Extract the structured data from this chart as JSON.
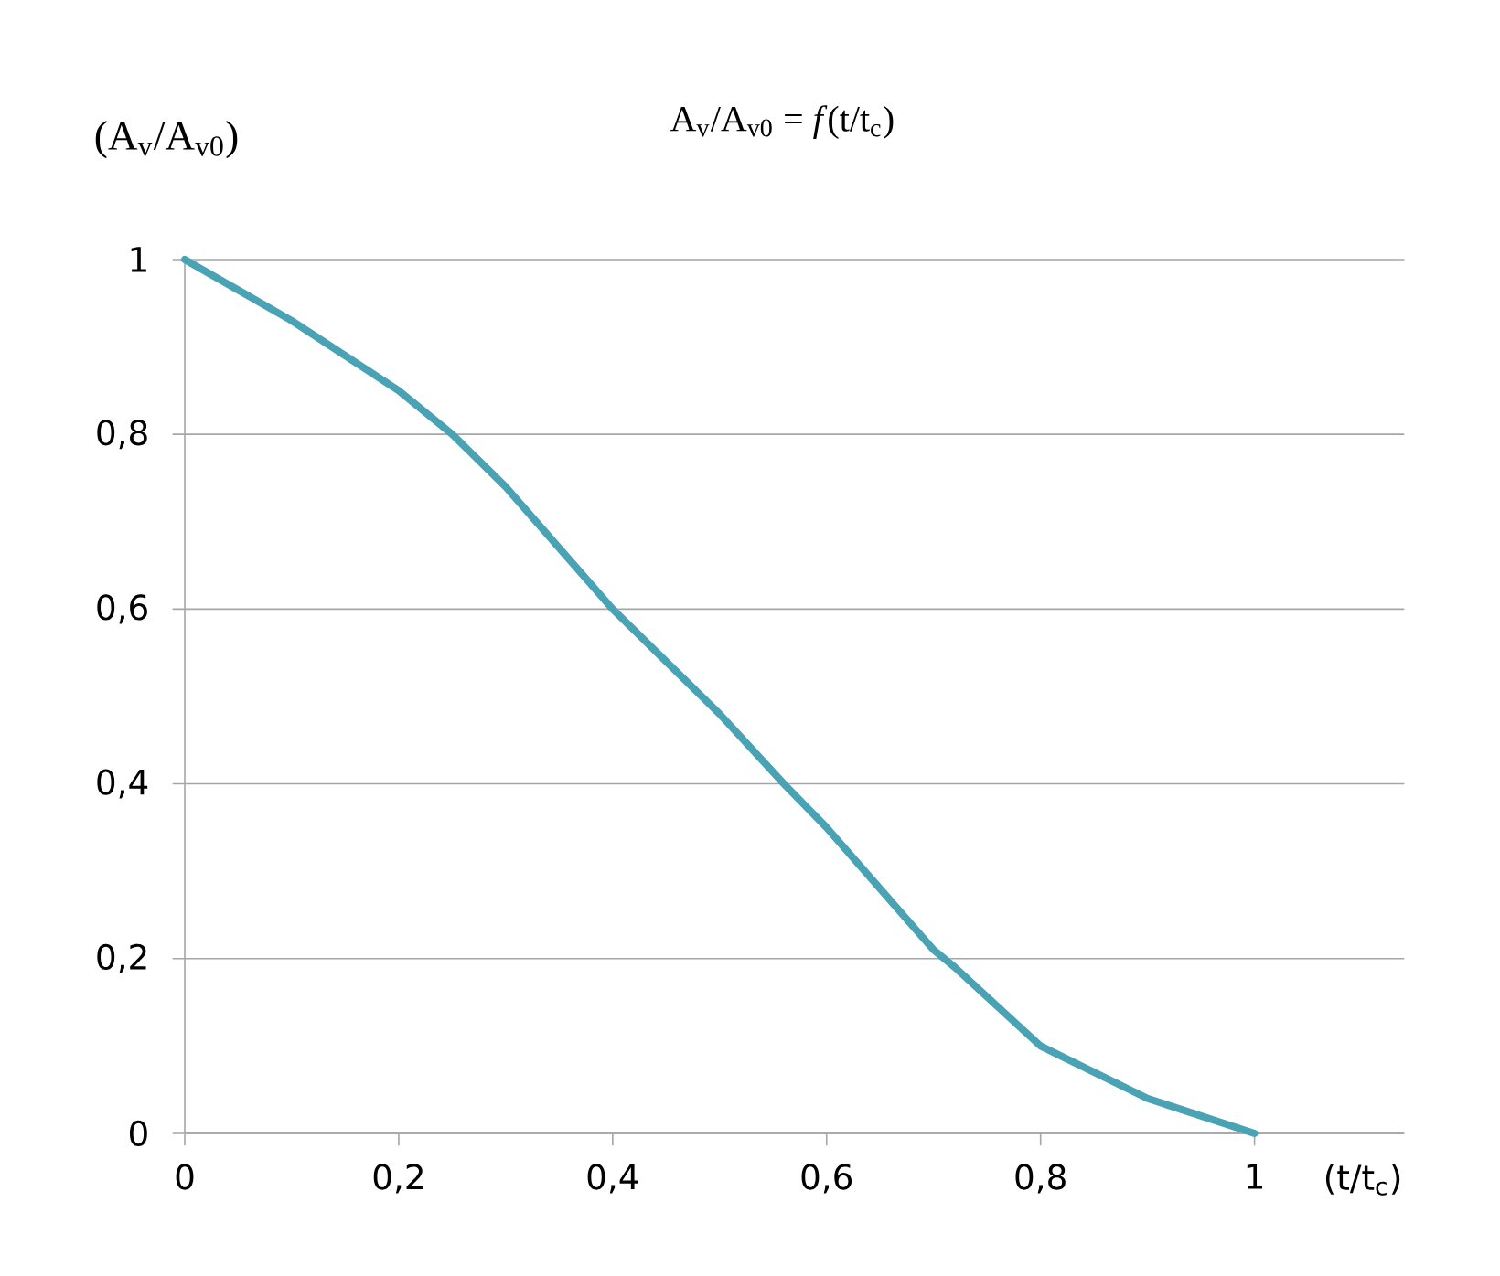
{
  "chart_data": {
    "type": "line",
    "title": "A$_{v}$/A$_{v0}$ = *f*(t/t$_{c}$)",
    "ylabel": "(A$_{v}$/A$_{v0}$)",
    "xlabel": "(t/t$_{c}$)",
    "x": [
      0,
      0.1,
      0.2,
      0.25,
      0.3,
      0.4,
      0.5,
      0.56,
      0.6,
      0.7,
      0.72,
      0.8,
      0.9,
      1
    ],
    "series": [
      {
        "color": "#4aa3b5",
        "values": [
          1,
          0.93,
          0.85,
          0.8,
          0.74,
          0.6,
          0.48,
          0.4,
          0.35,
          0.21,
          0.19,
          0.1,
          0.04,
          0
        ]
      }
    ],
    "xlim": [
      0,
      1.14
    ],
    "ylim": [
      0,
      1
    ],
    "xticks": [
      0,
      {
        "value": 0.2,
        "label": "0,2"
      },
      {
        "value": 0.4,
        "label": "0,4"
      },
      {
        "value": 0.6,
        "label": "0,6"
      },
      {
        "value": 0.8,
        "label": "0,8"
      },
      1
    ],
    "yticks": [
      0,
      {
        "value": 0.2,
        "label": "0,2"
      },
      {
        "value": 0.4,
        "label": "0,4"
      },
      {
        "value": 0.6,
        "label": "0,6"
      },
      {
        "value": 0.8,
        "label": "0,8"
      },
      1
    ],
    "grid": "y",
    "marker": "none",
    "line_style": "solid"
  }
}
